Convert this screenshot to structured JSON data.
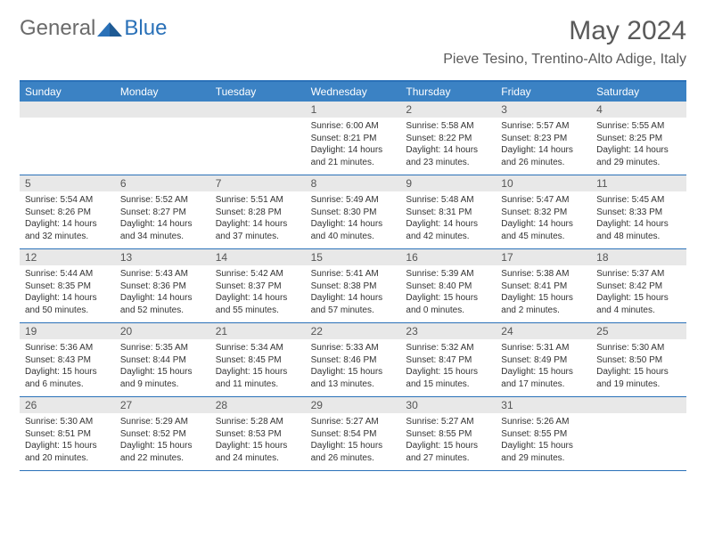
{
  "logo": {
    "text1": "General",
    "text2": "Blue"
  },
  "title": "May 2024",
  "location": "Pieve Tesino, Trentino-Alto Adige, Italy",
  "colors": {
    "header_bg": "#3b82c4",
    "border": "#2a71b8",
    "daynum_bg": "#e8e8e8",
    "text_dark": "#333333",
    "text_gray": "#5a5a5a"
  },
  "dayNames": [
    "Sunday",
    "Monday",
    "Tuesday",
    "Wednesday",
    "Thursday",
    "Friday",
    "Saturday"
  ],
  "weeks": [
    [
      {
        "n": "",
        "sr": "",
        "ss": "",
        "dl": ""
      },
      {
        "n": "",
        "sr": "",
        "ss": "",
        "dl": ""
      },
      {
        "n": "",
        "sr": "",
        "ss": "",
        "dl": ""
      },
      {
        "n": "1",
        "sr": "Sunrise: 6:00 AM",
        "ss": "Sunset: 8:21 PM",
        "dl": "Daylight: 14 hours and 21 minutes."
      },
      {
        "n": "2",
        "sr": "Sunrise: 5:58 AM",
        "ss": "Sunset: 8:22 PM",
        "dl": "Daylight: 14 hours and 23 minutes."
      },
      {
        "n": "3",
        "sr": "Sunrise: 5:57 AM",
        "ss": "Sunset: 8:23 PM",
        "dl": "Daylight: 14 hours and 26 minutes."
      },
      {
        "n": "4",
        "sr": "Sunrise: 5:55 AM",
        "ss": "Sunset: 8:25 PM",
        "dl": "Daylight: 14 hours and 29 minutes."
      }
    ],
    [
      {
        "n": "5",
        "sr": "Sunrise: 5:54 AM",
        "ss": "Sunset: 8:26 PM",
        "dl": "Daylight: 14 hours and 32 minutes."
      },
      {
        "n": "6",
        "sr": "Sunrise: 5:52 AM",
        "ss": "Sunset: 8:27 PM",
        "dl": "Daylight: 14 hours and 34 minutes."
      },
      {
        "n": "7",
        "sr": "Sunrise: 5:51 AM",
        "ss": "Sunset: 8:28 PM",
        "dl": "Daylight: 14 hours and 37 minutes."
      },
      {
        "n": "8",
        "sr": "Sunrise: 5:49 AM",
        "ss": "Sunset: 8:30 PM",
        "dl": "Daylight: 14 hours and 40 minutes."
      },
      {
        "n": "9",
        "sr": "Sunrise: 5:48 AM",
        "ss": "Sunset: 8:31 PM",
        "dl": "Daylight: 14 hours and 42 minutes."
      },
      {
        "n": "10",
        "sr": "Sunrise: 5:47 AM",
        "ss": "Sunset: 8:32 PM",
        "dl": "Daylight: 14 hours and 45 minutes."
      },
      {
        "n": "11",
        "sr": "Sunrise: 5:45 AM",
        "ss": "Sunset: 8:33 PM",
        "dl": "Daylight: 14 hours and 48 minutes."
      }
    ],
    [
      {
        "n": "12",
        "sr": "Sunrise: 5:44 AM",
        "ss": "Sunset: 8:35 PM",
        "dl": "Daylight: 14 hours and 50 minutes."
      },
      {
        "n": "13",
        "sr": "Sunrise: 5:43 AM",
        "ss": "Sunset: 8:36 PM",
        "dl": "Daylight: 14 hours and 52 minutes."
      },
      {
        "n": "14",
        "sr": "Sunrise: 5:42 AM",
        "ss": "Sunset: 8:37 PM",
        "dl": "Daylight: 14 hours and 55 minutes."
      },
      {
        "n": "15",
        "sr": "Sunrise: 5:41 AM",
        "ss": "Sunset: 8:38 PM",
        "dl": "Daylight: 14 hours and 57 minutes."
      },
      {
        "n": "16",
        "sr": "Sunrise: 5:39 AM",
        "ss": "Sunset: 8:40 PM",
        "dl": "Daylight: 15 hours and 0 minutes."
      },
      {
        "n": "17",
        "sr": "Sunrise: 5:38 AM",
        "ss": "Sunset: 8:41 PM",
        "dl": "Daylight: 15 hours and 2 minutes."
      },
      {
        "n": "18",
        "sr": "Sunrise: 5:37 AM",
        "ss": "Sunset: 8:42 PM",
        "dl": "Daylight: 15 hours and 4 minutes."
      }
    ],
    [
      {
        "n": "19",
        "sr": "Sunrise: 5:36 AM",
        "ss": "Sunset: 8:43 PM",
        "dl": "Daylight: 15 hours and 6 minutes."
      },
      {
        "n": "20",
        "sr": "Sunrise: 5:35 AM",
        "ss": "Sunset: 8:44 PM",
        "dl": "Daylight: 15 hours and 9 minutes."
      },
      {
        "n": "21",
        "sr": "Sunrise: 5:34 AM",
        "ss": "Sunset: 8:45 PM",
        "dl": "Daylight: 15 hours and 11 minutes."
      },
      {
        "n": "22",
        "sr": "Sunrise: 5:33 AM",
        "ss": "Sunset: 8:46 PM",
        "dl": "Daylight: 15 hours and 13 minutes."
      },
      {
        "n": "23",
        "sr": "Sunrise: 5:32 AM",
        "ss": "Sunset: 8:47 PM",
        "dl": "Daylight: 15 hours and 15 minutes."
      },
      {
        "n": "24",
        "sr": "Sunrise: 5:31 AM",
        "ss": "Sunset: 8:49 PM",
        "dl": "Daylight: 15 hours and 17 minutes."
      },
      {
        "n": "25",
        "sr": "Sunrise: 5:30 AM",
        "ss": "Sunset: 8:50 PM",
        "dl": "Daylight: 15 hours and 19 minutes."
      }
    ],
    [
      {
        "n": "26",
        "sr": "Sunrise: 5:30 AM",
        "ss": "Sunset: 8:51 PM",
        "dl": "Daylight: 15 hours and 20 minutes."
      },
      {
        "n": "27",
        "sr": "Sunrise: 5:29 AM",
        "ss": "Sunset: 8:52 PM",
        "dl": "Daylight: 15 hours and 22 minutes."
      },
      {
        "n": "28",
        "sr": "Sunrise: 5:28 AM",
        "ss": "Sunset: 8:53 PM",
        "dl": "Daylight: 15 hours and 24 minutes."
      },
      {
        "n": "29",
        "sr": "Sunrise: 5:27 AM",
        "ss": "Sunset: 8:54 PM",
        "dl": "Daylight: 15 hours and 26 minutes."
      },
      {
        "n": "30",
        "sr": "Sunrise: 5:27 AM",
        "ss": "Sunset: 8:55 PM",
        "dl": "Daylight: 15 hours and 27 minutes."
      },
      {
        "n": "31",
        "sr": "Sunrise: 5:26 AM",
        "ss": "Sunset: 8:55 PM",
        "dl": "Daylight: 15 hours and 29 minutes."
      },
      {
        "n": "",
        "sr": "",
        "ss": "",
        "dl": ""
      }
    ]
  ]
}
